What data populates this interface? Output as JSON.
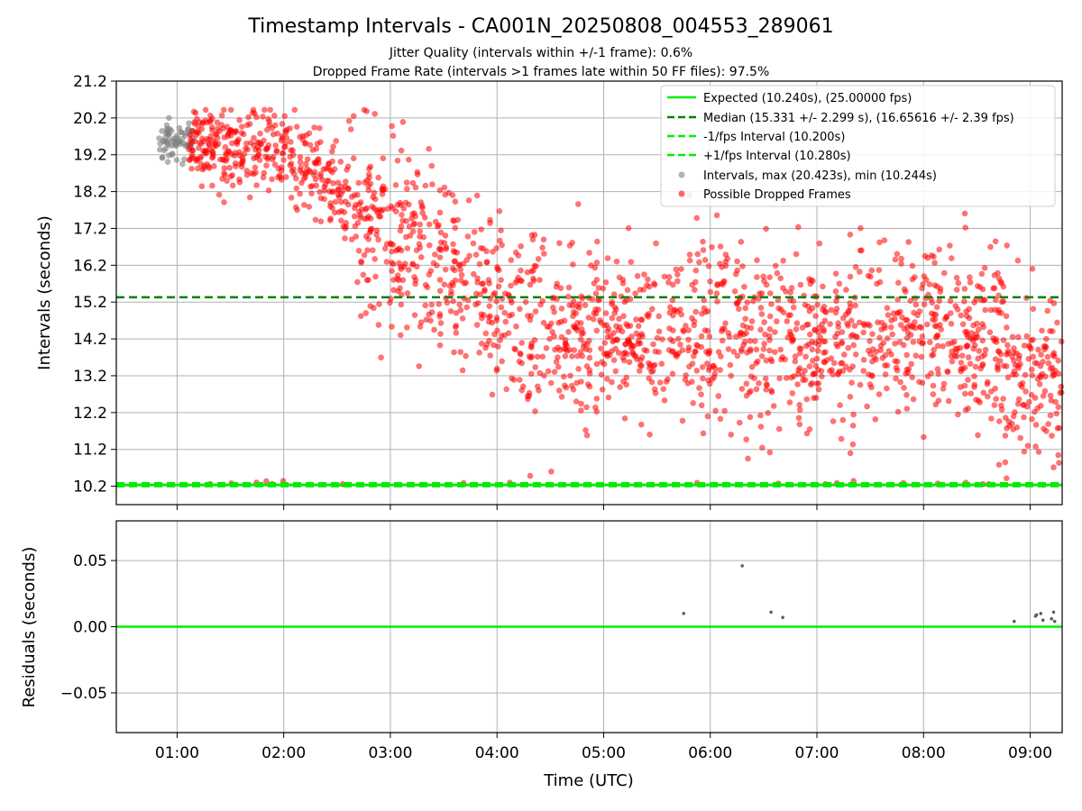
{
  "chart_data": [
    {
      "type": "scatter",
      "title": "Timestamp Intervals - CA001N_20250808_004553_289061",
      "subtitle_lines": [
        "Jitter Quality (intervals within +/-1 frame): 0.6%",
        "Dropped Frame Rate (intervals >1 frames late within 50 FF files): 97.5%"
      ],
      "xlabel": "",
      "ylabel": "Intervals (seconds)",
      "x_range_hours": [
        0.43,
        9.3
      ],
      "ylim": [
        9.7,
        21.2
      ],
      "yticks": [
        10.2,
        11.2,
        12.2,
        13.2,
        14.2,
        15.2,
        16.2,
        17.2,
        18.2,
        19.2,
        20.2,
        21.2
      ],
      "ytick_labels": [
        "10.2",
        "11.2",
        "12.2",
        "13.2",
        "14.2",
        "15.2",
        "16.2",
        "17.2",
        "18.2",
        "19.2",
        "20.2",
        "21.2"
      ],
      "grid": true,
      "legend_position": "top-right",
      "reference_lines": [
        {
          "name": "Expected (10.240s), (25.00000 fps)",
          "y": 10.24,
          "color": "#00ee00",
          "style": "solid"
        },
        {
          "name": "Median (15.331 +/- 2.299 s), (16.65616 +/- 2.39 fps)",
          "y": 15.331,
          "color": "#008000",
          "style": "dashed"
        },
        {
          "name": "-1/fps Interval (10.200s)",
          "y": 10.2,
          "color": "#00ee00",
          "style": "dashed"
        },
        {
          "name": "+1/fps Interval (10.280s)",
          "y": 10.28,
          "color": "#00ee00",
          "style": "dashed"
        }
      ],
      "series": [
        {
          "name": "Intervals, max (20.423s), min (10.244s)",
          "color": "#808080",
          "x_range_hours": [
            0.83,
            1.15
          ],
          "y_range": [
            18.7,
            20.2
          ],
          "trend": "cluster near 19.6 s"
        },
        {
          "name": "Possible Dropped Frames",
          "color": "#ff0000",
          "x_range_hours": [
            1.1,
            9.3
          ],
          "y_trend": [
            [
              1.2,
              19.5
            ],
            [
              2.0,
              19.3
            ],
            [
              2.6,
              18.0
            ],
            [
              3.0,
              17.0
            ],
            [
              3.5,
              16.3
            ],
            [
              4.0,
              15.0
            ],
            [
              4.5,
              14.5
            ],
            [
              5.0,
              14.5
            ],
            [
              6.0,
              14.3
            ],
            [
              7.0,
              14.3
            ],
            [
              8.0,
              14.5
            ],
            [
              8.7,
              13.8
            ],
            [
              9.2,
              12.5
            ]
          ],
          "y_spread_sd": 1.2,
          "approx_count": 2000
        }
      ]
    },
    {
      "type": "scatter",
      "xlabel": "Time (UTC)",
      "ylabel": "Residuals (seconds)",
      "ylim": [
        -0.08,
        0.08
      ],
      "yticks": [
        -0.05,
        0.0,
        0.05
      ],
      "ytick_labels": [
        "−0.05",
        "0.00",
        "0.05"
      ],
      "xticks_hours": [
        1,
        2,
        3,
        4,
        5,
        6,
        7,
        8,
        9
      ],
      "xtick_labels": [
        "01:00",
        "02:00",
        "03:00",
        "04:00",
        "05:00",
        "06:00",
        "07:00",
        "08:00",
        "09:00"
      ],
      "grid": true,
      "reference_lines": [
        {
          "y": 0.0,
          "color": "#00ee00",
          "style": "solid"
        }
      ],
      "series": [
        {
          "color": "#606060",
          "points": [
            [
              5.75,
              0.01
            ],
            [
              6.3,
              0.046
            ],
            [
              6.57,
              0.011
            ],
            [
              6.68,
              0.007
            ],
            [
              8.85,
              0.004
            ],
            [
              9.05,
              0.008
            ],
            [
              9.06,
              0.009
            ],
            [
              9.1,
              0.01
            ],
            [
              9.12,
              0.005
            ],
            [
              9.2,
              0.006
            ],
            [
              9.22,
              0.011
            ],
            [
              9.23,
              0.004
            ]
          ]
        }
      ]
    }
  ]
}
